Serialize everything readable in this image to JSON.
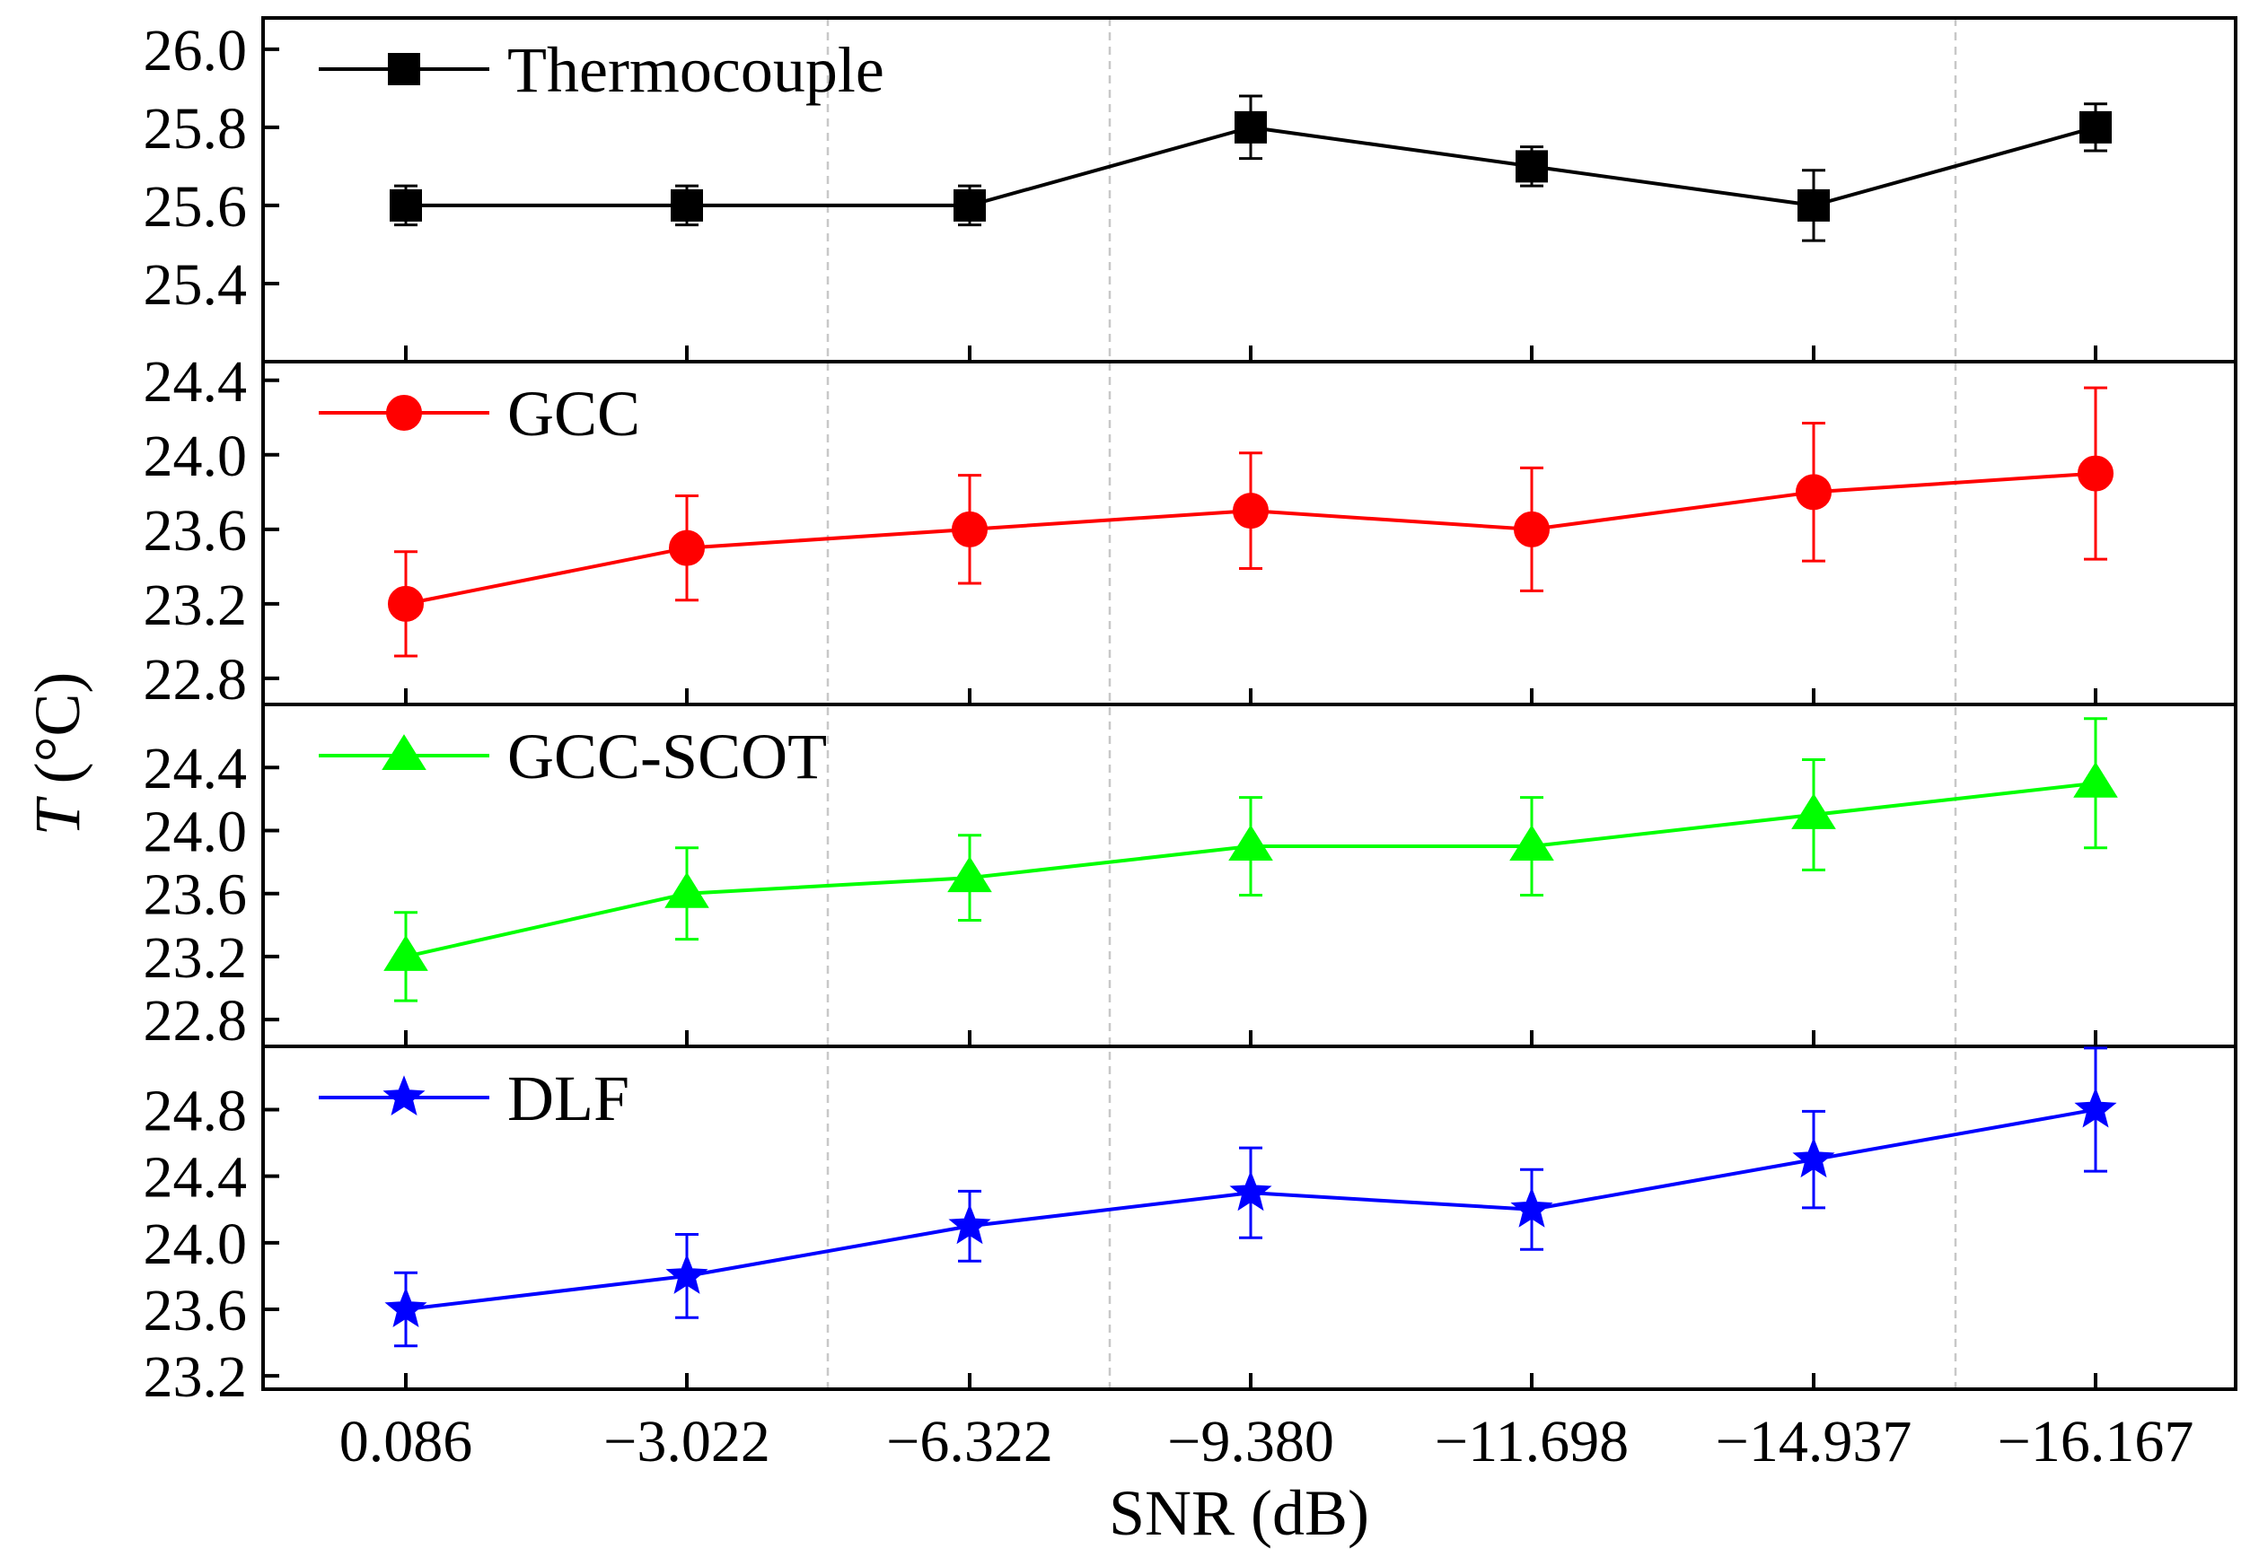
{
  "chart_data": {
    "type": "line",
    "xlabel": "SNR  (dB)",
    "ylabel_italic": "T",
    "ylabel_unit": " (°C)",
    "categories": [
      "0.086",
      "−3.022",
      "−6.322",
      "−9.380",
      "−11.698",
      "−14.937",
      "−16.167"
    ],
    "grid": "vertical dashed lines between selected categories",
    "legend_position": "top-left of each panel",
    "panels": [
      {
        "name": "Thermocouple",
        "color": "#000000",
        "marker": "square",
        "ylim": [
          25.2,
          26.08
        ],
        "yticks": [
          "25.4",
          "25.6",
          "25.8",
          "26.0"
        ],
        "ytick_values": [
          25.4,
          25.6,
          25.8,
          26.0
        ],
        "values": [
          25.6,
          25.6,
          25.6,
          25.8,
          25.7,
          25.6,
          25.8
        ],
        "errors": [
          0.05,
          0.05,
          0.05,
          0.08,
          0.05,
          0.09,
          0.06
        ]
      },
      {
        "name": "GCC",
        "color": "#ff0000",
        "marker": "circle",
        "ylim": [
          22.66,
          24.5
        ],
        "yticks": [
          "22.8",
          "23.2",
          "23.6",
          "24.0",
          "24.4"
        ],
        "ytick_values": [
          22.8,
          23.2,
          23.6,
          24.0,
          24.4
        ],
        "values": [
          23.2,
          23.5,
          23.6,
          23.7,
          23.6,
          23.8,
          23.9
        ],
        "errors": [
          0.28,
          0.28,
          0.29,
          0.31,
          0.33,
          0.37,
          0.46
        ]
      },
      {
        "name": "GCC-SCOT",
        "color": "#00ff00",
        "marker": "triangle",
        "ylim": [
          22.63,
          24.8
        ],
        "yticks": [
          "22.8",
          "23.2",
          "23.6",
          "24.0",
          "24.4"
        ],
        "ytick_values": [
          22.8,
          23.2,
          23.6,
          24.0,
          24.4
        ],
        "values": [
          23.2,
          23.6,
          23.7,
          23.9,
          23.9,
          24.1,
          24.3
        ],
        "errors": [
          0.28,
          0.29,
          0.27,
          0.31,
          0.31,
          0.35,
          0.41
        ]
      },
      {
        "name": "DLF",
        "color": "#0000ff",
        "marker": "star",
        "ylim": [
          23.12,
          25.18
        ],
        "yticks": [
          "23.2",
          "23.6",
          "24.0",
          "24.4",
          "24.8"
        ],
        "ytick_values": [
          23.2,
          23.6,
          24.0,
          24.4,
          24.8
        ],
        "values": [
          23.6,
          23.8,
          24.1,
          24.3,
          24.2,
          24.5,
          24.8
        ],
        "errors": [
          0.22,
          0.25,
          0.21,
          0.27,
          0.24,
          0.29,
          0.37
        ]
      }
    ]
  }
}
